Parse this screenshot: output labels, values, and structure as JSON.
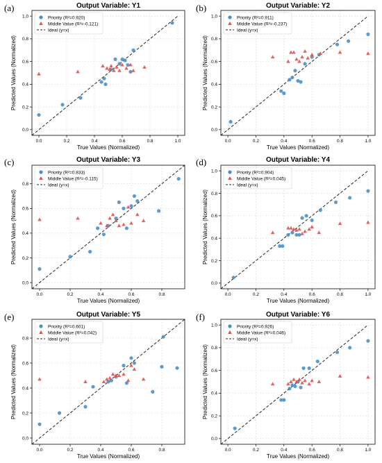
{
  "chart_data": [
    {
      "panel": "(a)",
      "type": "scatter",
      "title": "Output Variable: Y1",
      "xlabel": "True Values (Normalized)",
      "ylabel": "Predicted Values (Normalized)",
      "xlim": [
        -0.05,
        1.05
      ],
      "ylim": [
        -0.05,
        1.05
      ],
      "xticks": [
        "0.0",
        "0.2",
        "0.4",
        "0.6",
        "0.8",
        "1.0"
      ],
      "yticks": [
        "0.0",
        "0.2",
        "0.4",
        "0.6",
        "0.8",
        "1.0"
      ],
      "legend_position": "top-left",
      "grid": true,
      "series": [
        {
          "name": "Priority (R²=0.920)",
          "marker": "circle",
          "color": "#4a90c8",
          "points": [
            [
              0.0,
              0.13
            ],
            [
              0.17,
              0.22
            ],
            [
              0.3,
              0.28
            ],
            [
              0.45,
              0.42
            ],
            [
              0.48,
              0.4
            ],
            [
              0.47,
              0.45
            ],
            [
              0.52,
              0.53
            ],
            [
              0.55,
              0.62
            ],
            [
              0.58,
              0.58
            ],
            [
              0.6,
              0.62
            ],
            [
              0.62,
              0.61
            ],
            [
              0.64,
              0.57
            ],
            [
              0.66,
              0.51
            ],
            [
              0.68,
              0.7
            ],
            [
              0.96,
              0.94
            ]
          ]
        },
        {
          "name": "Middle Value (R²=-0.121)",
          "marker": "triangle",
          "color": "#e0524f",
          "points": [
            [
              0.0,
              0.49
            ],
            [
              0.28,
              0.51
            ],
            [
              0.46,
              0.56
            ],
            [
              0.49,
              0.54
            ],
            [
              0.51,
              0.53
            ],
            [
              0.52,
              0.56
            ],
            [
              0.54,
              0.52
            ],
            [
              0.56,
              0.55
            ],
            [
              0.58,
              0.52
            ],
            [
              0.6,
              0.57
            ],
            [
              0.63,
              0.54
            ],
            [
              0.66,
              0.57
            ],
            [
              0.68,
              0.52
            ],
            [
              0.76,
              0.55
            ]
          ]
        },
        {
          "name": "Ideal (y=x)",
          "marker": "dashed-line",
          "color": "#222222",
          "points": [
            [
              -0.05,
              -0.05
            ],
            [
              1.0,
              1.0
            ]
          ]
        }
      ]
    },
    {
      "panel": "(b)",
      "type": "scatter",
      "title": "Output Variable: Y2",
      "xlabel": "True Values (Normalized)",
      "ylabel": "Predicted Values (Normalized)",
      "xlim": [
        -0.05,
        1.05
      ],
      "ylim": [
        -0.05,
        1.05
      ],
      "xticks": [
        "0.0",
        "0.2",
        "0.4",
        "0.6",
        "0.8",
        "1.0"
      ],
      "yticks": [
        "0.0",
        "0.2",
        "0.4",
        "0.6",
        "0.8",
        "1.0"
      ],
      "legend_position": "top-left",
      "grid": true,
      "series": [
        {
          "name": "Priority (R²=0.911)",
          "marker": "circle",
          "color": "#4a90c8",
          "points": [
            [
              0.02,
              0.07
            ],
            [
              0.38,
              0.34
            ],
            [
              0.4,
              0.32
            ],
            [
              0.44,
              0.44
            ],
            [
              0.46,
              0.46
            ],
            [
              0.48,
              0.52
            ],
            [
              0.5,
              0.43
            ],
            [
              0.52,
              0.42
            ],
            [
              0.55,
              0.58
            ],
            [
              0.6,
              0.64
            ],
            [
              0.65,
              0.66
            ],
            [
              0.78,
              0.75
            ],
            [
              0.86,
              0.78
            ],
            [
              1.0,
              0.84
            ]
          ]
        },
        {
          "name": "Middle Value (R²=-0.237)",
          "marker": "triangle",
          "color": "#e0524f",
          "points": [
            [
              0.32,
              0.64
            ],
            [
              0.43,
              0.6
            ],
            [
              0.45,
              0.68
            ],
            [
              0.47,
              0.68
            ],
            [
              0.49,
              0.62
            ],
            [
              0.51,
              0.6
            ],
            [
              0.53,
              0.64
            ],
            [
              0.55,
              0.69
            ],
            [
              0.57,
              0.63
            ],
            [
              0.6,
              0.66
            ],
            [
              0.66,
              0.67
            ],
            [
              0.8,
              0.68
            ],
            [
              1.0,
              0.67
            ]
          ]
        },
        {
          "name": "Ideal (y=x)",
          "marker": "dashed-line",
          "color": "#222222",
          "points": [
            [
              -0.05,
              -0.05
            ],
            [
              1.0,
              1.0
            ]
          ]
        }
      ]
    },
    {
      "panel": "(c)",
      "type": "scatter",
      "title": "Output Variable: Y3",
      "xlabel": "True Values (Normalized)",
      "ylabel": "Predicted Values (Normalized)",
      "xlim": [
        -0.05,
        0.95
      ],
      "ylim": [
        -0.05,
        0.95
      ],
      "xticks": [
        "0.0",
        "0.2",
        "0.4",
        "0.6",
        "0.8"
      ],
      "yticks": [
        "0.0",
        "0.2",
        "0.4",
        "0.6",
        "0.8"
      ],
      "legend_position": "top-left",
      "grid": true,
      "series": [
        {
          "name": "Priority (R²=0.833)",
          "marker": "circle",
          "color": "#4a90c8",
          "points": [
            [
              0.0,
              0.11
            ],
            [
              0.2,
              0.21
            ],
            [
              0.33,
              0.25
            ],
            [
              0.38,
              0.44
            ],
            [
              0.42,
              0.39
            ],
            [
              0.45,
              0.46
            ],
            [
              0.5,
              0.52
            ],
            [
              0.52,
              0.65
            ],
            [
              0.55,
              0.6
            ],
            [
              0.57,
              0.44
            ],
            [
              0.6,
              0.62
            ],
            [
              0.62,
              0.7
            ],
            [
              0.64,
              0.66
            ],
            [
              0.78,
              0.58
            ],
            [
              0.91,
              0.84
            ]
          ]
        },
        {
          "name": "Middle Value (R²=-0.115)",
          "marker": "triangle",
          "color": "#e0524f",
          "points": [
            [
              0.0,
              0.51
            ],
            [
              0.25,
              0.52
            ],
            [
              0.4,
              0.48
            ],
            [
              0.44,
              0.46
            ],
            [
              0.46,
              0.52
            ],
            [
              0.48,
              0.55
            ],
            [
              0.5,
              0.5
            ],
            [
              0.52,
              0.46
            ],
            [
              0.55,
              0.47
            ],
            [
              0.58,
              0.61
            ],
            [
              0.6,
              0.48
            ],
            [
              0.64,
              0.55
            ],
            [
              0.68,
              0.5
            ]
          ]
        },
        {
          "name": "Ideal (y=x)",
          "marker": "dashed-line",
          "color": "#222222",
          "points": [
            [
              -0.05,
              -0.05
            ],
            [
              0.95,
              0.95
            ]
          ]
        }
      ]
    },
    {
      "panel": "(d)",
      "type": "scatter",
      "title": "Output Variable: Y4",
      "xlabel": "True Values (Normalized)",
      "ylabel": "Predicted Values (Normalized)",
      "xlim": [
        -0.05,
        1.05
      ],
      "ylim": [
        -0.05,
        1.05
      ],
      "xticks": [
        "0.0",
        "0.2",
        "0.4",
        "0.6",
        "0.8",
        "1.0"
      ],
      "yticks": [
        "0.0",
        "0.2",
        "0.4",
        "0.6",
        "0.8",
        "1.0"
      ],
      "legend_position": "top-left",
      "grid": true,
      "series": [
        {
          "name": "Priority (R²=0.904)",
          "marker": "circle",
          "color": "#4a90c8",
          "points": [
            [
              0.04,
              0.05
            ],
            [
              0.37,
              0.33
            ],
            [
              0.39,
              0.33
            ],
            [
              0.43,
              0.43
            ],
            [
              0.46,
              0.45
            ],
            [
              0.49,
              0.43
            ],
            [
              0.51,
              0.43
            ],
            [
              0.53,
              0.58
            ],
            [
              0.56,
              0.6
            ],
            [
              0.6,
              0.56
            ],
            [
              0.66,
              0.65
            ],
            [
              0.77,
              0.72
            ],
            [
              0.87,
              0.76
            ],
            [
              1.0,
              0.82
            ]
          ]
        },
        {
          "name": "Middle Value (R²=0.045)",
          "marker": "triangle",
          "color": "#e0524f",
          "points": [
            [
              0.32,
              0.45
            ],
            [
              0.43,
              0.49
            ],
            [
              0.45,
              0.49
            ],
            [
              0.47,
              0.48
            ],
            [
              0.49,
              0.47
            ],
            [
              0.51,
              0.48
            ],
            [
              0.53,
              0.44
            ],
            [
              0.55,
              0.46
            ],
            [
              0.58,
              0.48
            ],
            [
              0.6,
              0.5
            ],
            [
              0.65,
              0.45
            ],
            [
              0.8,
              0.53
            ],
            [
              1.0,
              0.54
            ]
          ]
        },
        {
          "name": "Ideal (y=x)",
          "marker": "dashed-line",
          "color": "#222222",
          "points": [
            [
              -0.05,
              -0.05
            ],
            [
              1.0,
              1.0
            ]
          ]
        }
      ]
    },
    {
      "panel": "(e)",
      "type": "scatter",
      "title": "Output Variable: Y5",
      "xlabel": "True Values (Normalized)",
      "ylabel": "Predicted Values (Normalized)",
      "xlim": [
        -0.05,
        0.95
      ],
      "ylim": [
        -0.05,
        0.95
      ],
      "xticks": [
        "0.0",
        "0.2",
        "0.4",
        "0.6",
        "0.8"
      ],
      "yticks": [
        "0.0",
        "0.2",
        "0.4",
        "0.6",
        "0.8"
      ],
      "legend_position": "top-left",
      "grid": true,
      "series": [
        {
          "name": "Priority (R²=0.601)",
          "marker": "circle",
          "color": "#4a90c8",
          "points": [
            [
              0.0,
              0.11
            ],
            [
              0.13,
              0.2
            ],
            [
              0.3,
              0.25
            ],
            [
              0.35,
              0.41
            ],
            [
              0.45,
              0.45
            ],
            [
              0.47,
              0.46
            ],
            [
              0.5,
              0.49
            ],
            [
              0.55,
              0.58
            ],
            [
              0.57,
              0.44
            ],
            [
              0.6,
              0.64
            ],
            [
              0.62,
              0.6
            ],
            [
              0.74,
              0.37
            ],
            [
              0.8,
              0.57
            ],
            [
              0.81,
              0.81
            ],
            [
              0.9,
              0.56
            ]
          ]
        },
        {
          "name": "Middle Value (R²=0.042)",
          "marker": "triangle",
          "color": "#e0524f",
          "points": [
            [
              0.0,
              0.47
            ],
            [
              0.3,
              0.45
            ],
            [
              0.42,
              0.45
            ],
            [
              0.44,
              0.47
            ],
            [
              0.46,
              0.48
            ],
            [
              0.48,
              0.51
            ],
            [
              0.5,
              0.5
            ],
            [
              0.52,
              0.5
            ],
            [
              0.55,
              0.51
            ],
            [
              0.58,
              0.46
            ],
            [
              0.6,
              0.58
            ],
            [
              0.62,
              0.55
            ],
            [
              0.68,
              0.47
            ]
          ]
        },
        {
          "name": "Ideal (y=x)",
          "marker": "dashed-line",
          "color": "#222222",
          "points": [
            [
              -0.05,
              -0.05
            ],
            [
              0.95,
              0.95
            ]
          ]
        }
      ]
    },
    {
      "panel": "(f)",
      "type": "scatter",
      "title": "Output Variable: Y6",
      "xlabel": "True Values (Normalized)",
      "ylabel": "Predicted Values (Normalized)",
      "xlim": [
        -0.05,
        1.05
      ],
      "ylim": [
        -0.05,
        1.05
      ],
      "xticks": [
        "0.0",
        "0.2",
        "0.4",
        "0.6",
        "0.8",
        "1.0"
      ],
      "yticks": [
        "0.0",
        "0.2",
        "0.4",
        "0.6",
        "0.8",
        "1.0"
      ],
      "legend_position": "top-left",
      "grid": true,
      "series": [
        {
          "name": "Priority (R²=0.926)",
          "marker": "circle",
          "color": "#4a90c8",
          "points": [
            [
              0.05,
              0.09
            ],
            [
              0.38,
              0.34
            ],
            [
              0.4,
              0.34
            ],
            [
              0.44,
              0.44
            ],
            [
              0.46,
              0.47
            ],
            [
              0.48,
              0.46
            ],
            [
              0.5,
              0.5
            ],
            [
              0.52,
              0.45
            ],
            [
              0.54,
              0.62
            ],
            [
              0.58,
              0.62
            ],
            [
              0.64,
              0.68
            ],
            [
              0.78,
              0.76
            ],
            [
              0.87,
              0.8
            ],
            [
              1.0,
              0.86
            ]
          ]
        },
        {
          "name": "Middle Value (R²=0.046)",
          "marker": "triangle",
          "color": "#e0524f",
          "points": [
            [
              0.32,
              0.48
            ],
            [
              0.43,
              0.48
            ],
            [
              0.45,
              0.5
            ],
            [
              0.47,
              0.52
            ],
            [
              0.49,
              0.5
            ],
            [
              0.51,
              0.52
            ],
            [
              0.53,
              0.49
            ],
            [
              0.55,
              0.51
            ],
            [
              0.58,
              0.48
            ],
            [
              0.6,
              0.51
            ],
            [
              0.65,
              0.5
            ],
            [
              0.8,
              0.55
            ],
            [
              1.0,
              0.54
            ]
          ]
        },
        {
          "name": "Ideal (y=x)",
          "marker": "dashed-line",
          "color": "#222222",
          "points": [
            [
              -0.05,
              -0.05
            ],
            [
              1.0,
              1.0
            ]
          ]
        }
      ]
    }
  ]
}
